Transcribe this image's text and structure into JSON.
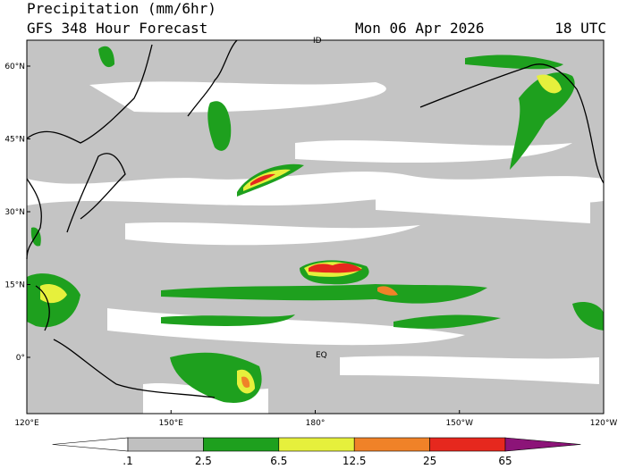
{
  "header": {
    "title": "Precipitation (mm/6hr)",
    "model": "GFS 348 Hour Forecast",
    "date": "Mon 06 Apr 2026",
    "time": "18 UTC"
  },
  "map": {
    "lat_ticks": [
      {
        "value": 60,
        "label": "60°N"
      },
      {
        "value": 45,
        "label": "45°N"
      },
      {
        "value": 30,
        "label": "30°N"
      },
      {
        "value": 15,
        "label": "15°N"
      },
      {
        "value": 0,
        "label": "0°"
      }
    ],
    "lon_ticks": [
      {
        "value": 120,
        "label": "120°E"
      },
      {
        "value": 150,
        "label": "150°E"
      },
      {
        "value": 180,
        "label": "180°"
      },
      {
        "value": 210,
        "label": "150°W"
      },
      {
        "value": 240,
        "label": "120°W"
      }
    ],
    "labels": [
      "EQ",
      "ID"
    ]
  },
  "colorbar": {
    "levels": [
      {
        "value": 0.1,
        "label": ".1"
      },
      2.5,
      6.5,
      12.5,
      25,
      65
    ],
    "colors": [
      "#ffffff",
      "#c0c0c0",
      "#1ea01e",
      "#e6f03c",
      "#f08228",
      "#e6281e",
      "#8c1478"
    ]
  }
}
